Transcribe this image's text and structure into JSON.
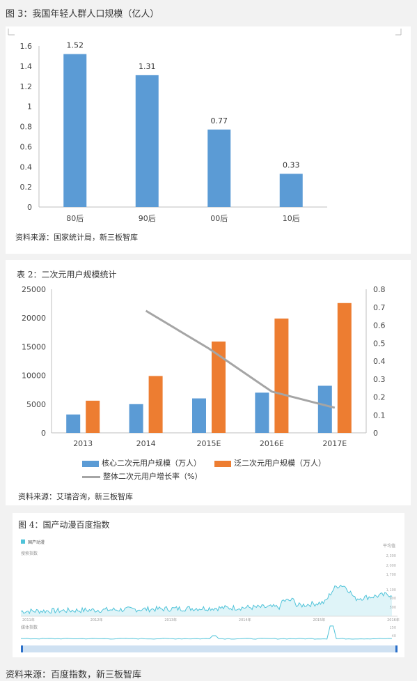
{
  "fig3_caption": "图 3：我国年轻人群人口规模（亿人）",
  "chart1_source": "资料来源：国家统计局，新三板智库",
  "table2_caption": "表 2：二次元用户规模统计",
  "chart2_source": "资料来源：艾瑞咨询，新三板智库",
  "fig4_caption": "图 4：国产动漫百度指数",
  "chart3_legend": "国产动漫",
  "chart3_corner_label": "平均值",
  "chart3_section1_label": "搜索指数",
  "chart3_section2_label": "媒体指数",
  "bottom_source": "资料来源：百度指数，新三板智库",
  "colors": {
    "blue": "#5b9bd5",
    "orange": "#ed7d31",
    "gray": "#a5a5a5",
    "baidu": "#4fc3d9"
  },
  "chart_data": [
    {
      "type": "bar",
      "categories": [
        "80后",
        "90后",
        "00后",
        "10后"
      ],
      "values": [
        1.52,
        1.31,
        0.77,
        0.33
      ],
      "data_labels": [
        "1.52",
        "1.31",
        "0.77",
        "0.33"
      ],
      "yticks": [
        "0",
        "0.2",
        "0.4",
        "0.6",
        "0.8",
        "1",
        "1.2",
        "1.4",
        "1.6"
      ],
      "ylim": [
        0,
        1.6
      ],
      "grid": false,
      "color": "#5b9bd5"
    },
    {
      "type": "bar",
      "categories": [
        "2013",
        "2014",
        "2015E",
        "2016E",
        "2017E"
      ],
      "series": [
        {
          "name": "核心二次元用户规模（万人）",
          "values": [
            3200,
            5000,
            6000,
            7000,
            8200
          ],
          "color": "#5b9bd5"
        },
        {
          "name": "泛二次元用户规模（万人）",
          "values": [
            5600,
            9900,
            15900,
            19900,
            22600
          ],
          "color": "#ed7d31"
        }
      ],
      "line": {
        "name": "整体二次元用户增长率（%）",
        "x": [
          "2014",
          "2015E",
          "2016E",
          "2017E"
        ],
        "values": [
          0.68,
          0.47,
          0.23,
          0.14
        ],
        "color": "#a5a5a5",
        "axis": "right"
      },
      "yticks": [
        "0",
        "5000",
        "10000",
        "15000",
        "20000",
        "25000"
      ],
      "ylim": [
        0,
        25000
      ],
      "y2ticks": [
        "0",
        "0.1",
        "0.2",
        "0.3",
        "0.4",
        "0.5",
        "0.6",
        "0.7",
        "0.8"
      ],
      "y2lim": [
        0,
        0.8
      ],
      "legend_position": "bottom",
      "grid": false
    },
    {
      "type": "area",
      "series": [
        {
          "name": "国产动漫",
          "color": "#4fc3d9"
        }
      ],
      "x_ticks": [
        "2011年",
        "2012年",
        "2013年",
        "2014年",
        "2015年",
        "2016年"
      ],
      "y_ticks": [
        "500",
        "900",
        "1,100",
        "1,700",
        "2,000",
        "2,300"
      ],
      "y_label_right": "平均值",
      "media_ticks": [
        "150",
        "40"
      ],
      "x_range": [
        2011,
        2016
      ],
      "grid": false
    }
  ]
}
